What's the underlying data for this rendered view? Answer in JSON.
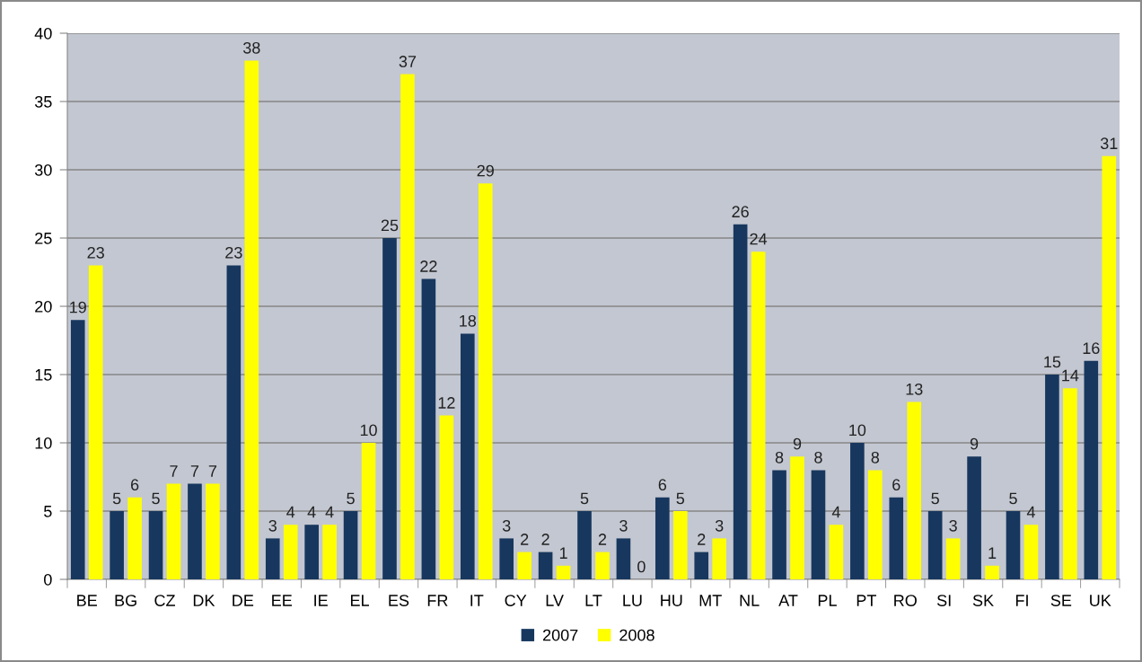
{
  "chart_data": {
    "type": "bar",
    "categories": [
      "BE",
      "BG",
      "CZ",
      "DK",
      "DE",
      "EE",
      "IE",
      "EL",
      "ES",
      "FR",
      "IT",
      "CY",
      "LV",
      "LT",
      "LU",
      "HU",
      "MT",
      "NL",
      "AT",
      "PL",
      "PT",
      "RO",
      "SI",
      "SK",
      "FI",
      "SE",
      "UK"
    ],
    "series": [
      {
        "name": "2007",
        "color": "#17375e",
        "values": [
          19,
          5,
          5,
          7,
          23,
          3,
          4,
          5,
          25,
          22,
          18,
          3,
          2,
          5,
          3,
          6,
          2,
          26,
          8,
          8,
          10,
          6,
          5,
          9,
          5,
          15,
          16
        ]
      },
      {
        "name": "2008",
        "color": "#ffff00",
        "values": [
          23,
          6,
          7,
          7,
          38,
          4,
          4,
          10,
          37,
          12,
          29,
          2,
          1,
          2,
          0,
          5,
          3,
          24,
          9,
          4,
          8,
          13,
          3,
          1,
          4,
          14,
          31
        ]
      }
    ],
    "ylim": [
      0,
      40
    ],
    "yticks": [
      0,
      5,
      10,
      15,
      20,
      25,
      30,
      35,
      40
    ],
    "grid": "y",
    "legend": "bottom",
    "data_labels": true
  }
}
